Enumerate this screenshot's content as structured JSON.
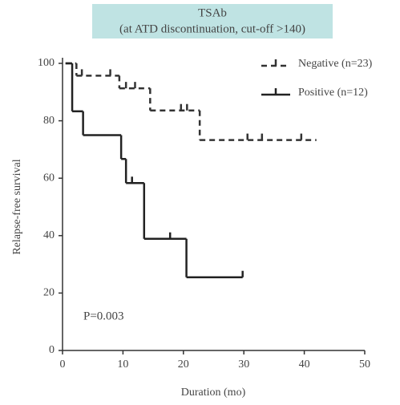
{
  "chart_data": {
    "type": "step",
    "title": "TSAb",
    "subtitle": "(at ATD discontinuation, cut-off >140)",
    "x_label": "Duration (mo)",
    "y_label": "Relapse-free survival",
    "annotation": "P=0.003",
    "xlim": [
      0,
      50
    ],
    "xticks": [
      0,
      10,
      20,
      30,
      40,
      50
    ],
    "ylim": [
      0,
      100
    ],
    "yticks": [
      0,
      20,
      40,
      60,
      80,
      100
    ],
    "legend": "top-right",
    "series": [
      {
        "name": "Negative (n=23)",
        "color": "#333333",
        "line_style": "dashed",
        "x": [
          0.5,
          2.3,
          9.4,
          14.5,
          22.7,
          42
        ],
        "values": [
          100,
          95.7,
          91.3,
          83.6,
          73.3,
          73.3
        ],
        "censored": {
          "x": [
            3.2,
            7.9,
            10.5,
            12,
            19.6,
            20.6,
            30.6,
            33,
            39.5
          ],
          "values": [
            95.7,
            95.7,
            91.3,
            91.3,
            83.6,
            83.6,
            73.3,
            73.3,
            73.3
          ]
        }
      },
      {
        "name": "Positive (n=12)",
        "color": "#222222",
        "line_style": "solid",
        "x": [
          0.5,
          1.6,
          3.4,
          9.7,
          10.5,
          13.5,
          20.5,
          29.8
        ],
        "values": [
          100,
          83.3,
          75,
          66.7,
          58.3,
          38.9,
          25.5,
          25.5
        ],
        "censored": {
          "x": [
            11.5,
            17.8,
            29.8
          ],
          "values": [
            58.3,
            38.9,
            25.5
          ]
        }
      }
    ]
  }
}
